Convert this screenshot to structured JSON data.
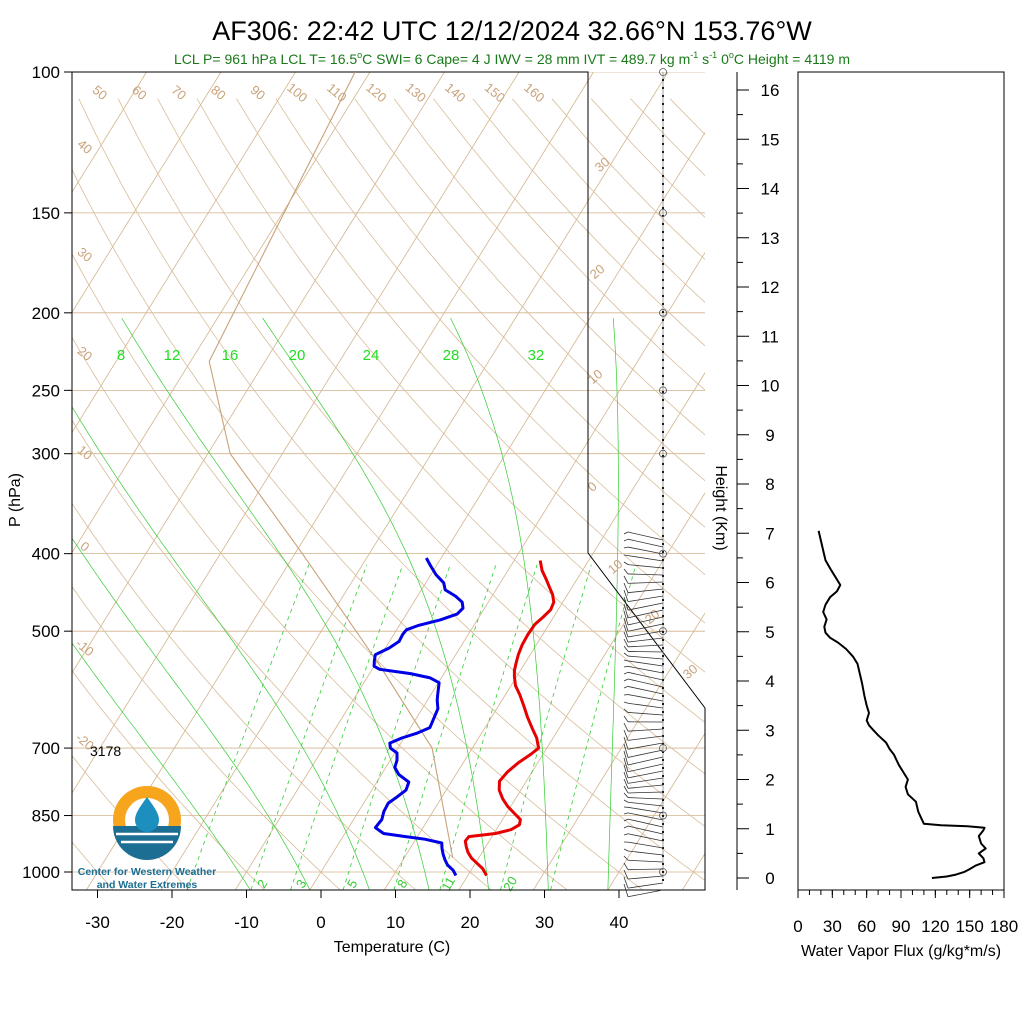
{
  "title": "AF306: 22:42 UTC 12/12/2024  32.66°N 153.76°W",
  "subtitle_parts": [
    "LCL P= 961 hPa  LCL T= 16.5",
    "o",
    "C  SWI= 6  Cape= 4 J  IWV = 28 mm  IVT = 489.7 kg m",
    "-1",
    " s",
    "-1",
    "  0",
    "o",
    "C Height = 4119 m"
  ],
  "logo": {
    "line1": "Center for Western Weather",
    "line2": "and Water Extremes"
  },
  "colors": {
    "temperature": "#e60000",
    "dewpoint": "#0000e6",
    "isotherm": "#d2b48c",
    "mixing_ratio": "#33cc33",
    "dry_adiabat": "#d8bd9a",
    "flux": "#000000"
  },
  "chart_data": [
    {
      "type": "line",
      "name": "skew-t",
      "xlabel": "Temperature (C)",
      "ylabel": "P (hPa)",
      "y2label": "Height (Km)",
      "x_ticks": [
        -30,
        -20,
        -10,
        0,
        10,
        20,
        30,
        40
      ],
      "p_ticks": [
        100,
        150,
        200,
        250,
        300,
        400,
        500,
        700,
        850,
        1000
      ],
      "height_ticks": [
        0,
        1,
        2,
        3,
        4,
        5,
        6,
        7,
        8,
        9,
        10,
        11,
        12,
        13,
        14,
        15,
        16
      ],
      "isotherm_labels": [
        -40,
        -30,
        -20,
        -10,
        0,
        10,
        20,
        30
      ],
      "dry_labels": [
        50,
        60,
        70,
        80,
        90,
        100,
        110,
        120,
        130,
        140,
        150,
        160
      ],
      "dry_left_labels": [
        40,
        30,
        20,
        10,
        0,
        -10,
        -20
      ],
      "moist_labels": [
        8,
        12,
        16,
        20,
        24,
        28,
        32
      ],
      "mix_labels": [
        2,
        3,
        5,
        8,
        11,
        20
      ],
      "annotation": "3178",
      "temperature": [
        [
          1010,
          22.5
        ],
        [
          990,
          21.4
        ],
        [
          975,
          20.2
        ],
        [
          960,
          19.0
        ],
        [
          945,
          18.1
        ],
        [
          930,
          17.4
        ],
        [
          915,
          16.8
        ],
        [
          903,
          16.9
        ],
        [
          895,
          20.2
        ],
        [
          885,
          22.0
        ],
        [
          873,
          22.7
        ],
        [
          860,
          22.4
        ],
        [
          845,
          21.1
        ],
        [
          828,
          19.6
        ],
        [
          810,
          18.3
        ],
        [
          790,
          17.1
        ],
        [
          770,
          16.4
        ],
        [
          750,
          16.7
        ],
        [
          730,
          17.4
        ],
        [
          712,
          18.4
        ],
        [
          700,
          18.9
        ],
        [
          680,
          17.8
        ],
        [
          660,
          16.3
        ],
        [
          640,
          14.8
        ],
        [
          620,
          13.4
        ],
        [
          600,
          11.9
        ],
        [
          585,
          10.6
        ],
        [
          570,
          9.7
        ],
        [
          560,
          9.2
        ],
        [
          548,
          8.8
        ],
        [
          535,
          8.4
        ],
        [
          520,
          8.1
        ],
        [
          505,
          8.0
        ],
        [
          490,
          8.1
        ],
        [
          480,
          8.6
        ],
        [
          470,
          9.0
        ],
        [
          460,
          8.8
        ],
        [
          450,
          8.0
        ],
        [
          440,
          6.9
        ],
        [
          430,
          5.8
        ],
        [
          420,
          4.6
        ],
        [
          408,
          3.5
        ]
      ],
      "dewpoint": [
        [
          1010,
          18.4
        ],
        [
          995,
          17.6
        ],
        [
          980,
          16.4
        ],
        [
          965,
          15.6
        ],
        [
          950,
          14.9
        ],
        [
          935,
          14.3
        ],
        [
          920,
          13.8
        ],
        [
          910,
          11.2
        ],
        [
          903,
          8.4
        ],
        [
          895,
          5.2
        ],
        [
          880,
          3.6
        ],
        [
          860,
          3.8
        ],
        [
          840,
          3.4
        ],
        [
          820,
          3.3
        ],
        [
          805,
          4.0
        ],
        [
          790,
          4.6
        ],
        [
          772,
          4.3
        ],
        [
          755,
          2.3
        ],
        [
          740,
          1.2
        ],
        [
          725,
          0.9
        ],
        [
          710,
          0.3
        ],
        [
          700,
          -1.0
        ],
        [
          690,
          -1.5
        ],
        [
          680,
          -0.3
        ],
        [
          670,
          1.4
        ],
        [
          660,
          2.6
        ],
        [
          645,
          2.4
        ],
        [
          625,
          2.1
        ],
        [
          610,
          1.3
        ],
        [
          600,
          0.9
        ],
        [
          590,
          0.5
        ],
        [
          580,
          0.1
        ],
        [
          572,
          -1.5
        ],
        [
          565,
          -4.5
        ],
        [
          558,
          -9.0
        ],
        [
          553,
          -10.0
        ],
        [
          545,
          -10.4
        ],
        [
          535,
          -10.8
        ],
        [
          525,
          -9.5
        ],
        [
          515,
          -8.7
        ],
        [
          505,
          -8.8
        ],
        [
          498,
          -8.7
        ],
        [
          492,
          -7.5
        ],
        [
          484,
          -5.0
        ],
        [
          476,
          -3.2
        ],
        [
          468,
          -2.9
        ],
        [
          460,
          -3.5
        ],
        [
          452,
          -4.9
        ],
        [
          444,
          -6.8
        ],
        [
          435,
          -7.6
        ],
        [
          425,
          -9.3
        ],
        [
          414,
          -10.8
        ],
        [
          405,
          -12.0
        ]
      ],
      "parcel": [
        [
          960,
          16.5
        ],
        [
          700,
          4.6
        ],
        [
          550,
          -9.5
        ],
        [
          400,
          -29.0
        ],
        [
          300,
          -47.0
        ],
        [
          230,
          -57.5
        ],
        [
          100,
          -62.0
        ]
      ]
    },
    {
      "type": "line",
      "name": "water-vapor-flux",
      "xlabel": "Water Vapor Flux (g/kg*m/s)",
      "xlim": [
        0,
        180
      ],
      "x_ticks": [
        0,
        30,
        60,
        90,
        120,
        150,
        180
      ],
      "ylim_km": [
        0,
        16.4
      ],
      "values": [
        [
          117,
          0.0
        ],
        [
          130,
          0.03
        ],
        [
          138,
          0.07
        ],
        [
          145,
          0.12
        ],
        [
          150,
          0.18
        ],
        [
          155,
          0.25
        ],
        [
          163,
          0.32
        ],
        [
          162,
          0.4
        ],
        [
          158,
          0.5
        ],
        [
          164,
          0.6
        ],
        [
          160,
          0.7
        ],
        [
          158,
          0.85
        ],
        [
          162,
          0.97
        ],
        [
          163,
          1.02
        ],
        [
          148,
          1.05
        ],
        [
          125,
          1.07
        ],
        [
          110,
          1.1
        ],
        [
          108,
          1.2
        ],
        [
          105,
          1.35
        ],
        [
          103,
          1.55
        ],
        [
          96,
          1.7
        ],
        [
          94,
          1.85
        ],
        [
          96,
          2.0
        ],
        [
          92,
          2.15
        ],
        [
          88,
          2.3
        ],
        [
          84,
          2.5
        ],
        [
          80,
          2.62
        ],
        [
          77,
          2.75
        ],
        [
          70,
          2.9
        ],
        [
          66,
          3.0
        ],
        [
          62,
          3.1
        ],
        [
          60,
          3.2
        ],
        [
          62,
          3.35
        ],
        [
          60,
          3.5
        ],
        [
          58,
          3.7
        ],
        [
          56,
          3.95
        ],
        [
          54,
          4.15
        ],
        [
          52,
          4.35
        ],
        [
          48,
          4.5
        ],
        [
          42,
          4.65
        ],
        [
          35,
          4.78
        ],
        [
          28,
          4.88
        ],
        [
          24,
          4.98
        ],
        [
          23,
          5.1
        ],
        [
          25,
          5.25
        ],
        [
          22,
          5.4
        ],
        [
          24,
          5.55
        ],
        [
          28,
          5.7
        ],
        [
          34,
          5.82
        ],
        [
          37,
          5.95
        ],
        [
          33,
          6.1
        ],
        [
          29,
          6.25
        ],
        [
          24,
          6.45
        ],
        [
          22,
          6.65
        ],
        [
          20,
          6.85
        ],
        [
          18,
          7.05
        ]
      ]
    }
  ]
}
